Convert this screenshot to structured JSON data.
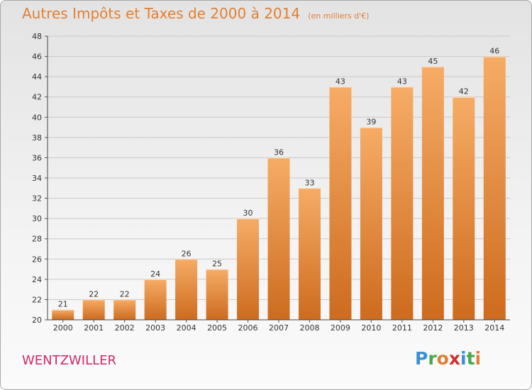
{
  "header": {
    "title": "Autres Impôts et Taxes de 2000 à 2014",
    "subtitle": "(en milliers d'€)"
  },
  "footer": {
    "commune": "WENTZWILLER",
    "logo_text": "Proxiti"
  },
  "colors": {
    "title": "#e07f35",
    "bar_light": "#f5a860",
    "bar_dark": "#cc6a1c",
    "commune": "#cc2a6a",
    "grid": "#c8c8c8"
  },
  "chart_data": {
    "type": "bar",
    "title": "Autres Impôts et Taxes de 2000 à 2014",
    "subtitle": "(en milliers d'€)",
    "xlabel": "",
    "ylabel": "",
    "categories": [
      "2000",
      "2001",
      "2002",
      "2003",
      "2004",
      "2005",
      "2006",
      "2007",
      "2008",
      "2009",
      "2010",
      "2011",
      "2012",
      "2013",
      "2014"
    ],
    "values": [
      21,
      22,
      22,
      24,
      26,
      25,
      30,
      36,
      33,
      43,
      39,
      43,
      45,
      42,
      46
    ],
    "ylim": [
      20,
      48
    ],
    "yticks": [
      20,
      22,
      24,
      26,
      28,
      30,
      32,
      34,
      36,
      38,
      40,
      42,
      44,
      46,
      48
    ],
    "grid": true,
    "legend": "none"
  }
}
